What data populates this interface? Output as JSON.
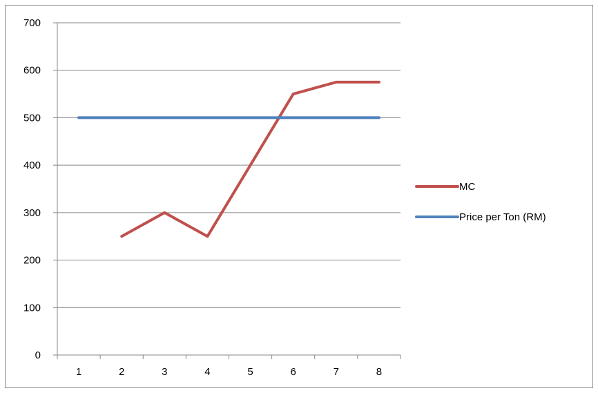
{
  "chart_data": {
    "type": "line",
    "categories": [
      "1",
      "2",
      "3",
      "4",
      "5",
      "6",
      "7",
      "8"
    ],
    "x": [
      1,
      2,
      3,
      4,
      5,
      6,
      7,
      8
    ],
    "series": [
      {
        "name": "MC",
        "color": "#c0504d",
        "values": [
          null,
          250,
          300,
          250,
          400,
          550,
          575,
          575
        ]
      },
      {
        "name": "Price per Ton (RM)",
        "color": "#4f81bd",
        "values": [
          500,
          500,
          500,
          500,
          500,
          500,
          500,
          500
        ]
      }
    ],
    "yticks": [
      0,
      100,
      200,
      300,
      400,
      500,
      600,
      700
    ],
    "ylim": [
      0,
      700
    ],
    "grid": "horizontal",
    "legend_position": "right",
    "title": "",
    "xlabel": "",
    "ylabel": ""
  }
}
